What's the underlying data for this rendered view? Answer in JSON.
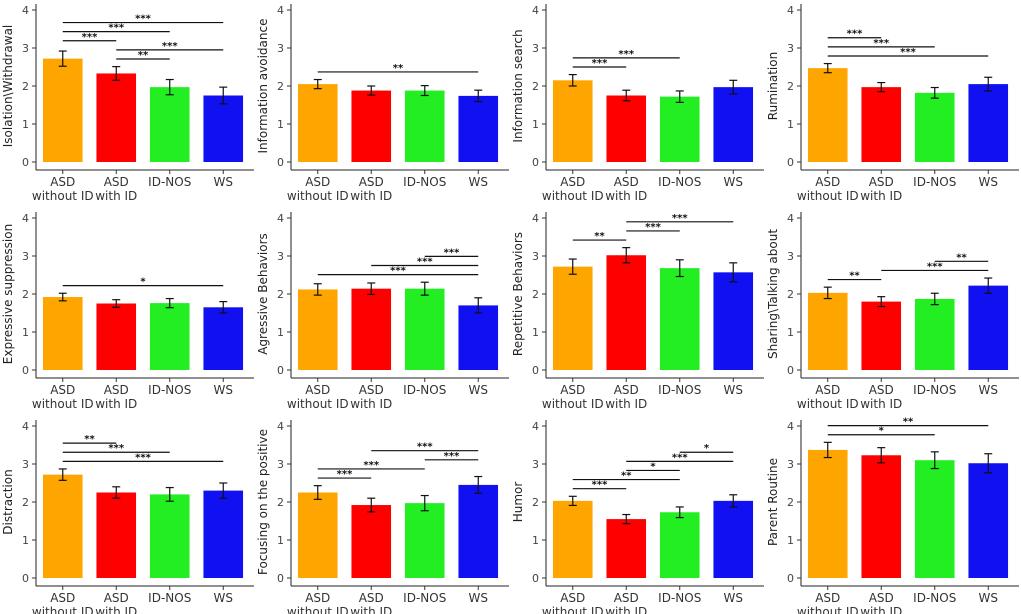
{
  "chart_data": [
    {
      "type": "bar",
      "ylabel": "Isolation\\Withdrawal",
      "categories": [
        "ASD\nwithout ID",
        "ASD\nwith ID",
        "ID-NOS",
        "WS"
      ],
      "values": [
        2.72,
        2.33,
        1.97,
        1.75
      ],
      "errors": [
        0.2,
        0.18,
        0.2,
        0.22
      ],
      "colors": [
        "#ffa500",
        "#ff0000",
        "#22ee22",
        "#1010f0"
      ],
      "ylim": [
        0,
        4
      ],
      "yticks": [
        0,
        1,
        2,
        3,
        4
      ],
      "comparisons": [
        {
          "from": 0,
          "to": 3,
          "label": "***"
        },
        {
          "from": 0,
          "to": 2,
          "label": "***"
        },
        {
          "from": 0,
          "to": 1,
          "label": "***"
        },
        {
          "from": 1,
          "to": 3,
          "label": "***"
        },
        {
          "from": 1,
          "to": 2,
          "label": "**"
        }
      ]
    },
    {
      "type": "bar",
      "ylabel": "Information avoidance",
      "categories": [
        "ASD\nwithout ID",
        "ASD\nwith ID",
        "ID-NOS",
        "WS"
      ],
      "values": [
        2.05,
        1.88,
        1.88,
        1.74
      ],
      "errors": [
        0.12,
        0.12,
        0.13,
        0.15
      ],
      "colors": [
        "#ffa500",
        "#ff0000",
        "#22ee22",
        "#1010f0"
      ],
      "ylim": [
        0,
        4
      ],
      "yticks": [
        0,
        1,
        2,
        3,
        4
      ],
      "comparisons": [
        {
          "from": 0,
          "to": 3,
          "label": "**"
        }
      ]
    },
    {
      "type": "bar",
      "ylabel": "Information search",
      "categories": [
        "ASD\nwithout ID",
        "ASD\nwith ID",
        "ID-NOS",
        "WS"
      ],
      "values": [
        2.15,
        1.75,
        1.72,
        1.97
      ],
      "errors": [
        0.15,
        0.14,
        0.15,
        0.18
      ],
      "colors": [
        "#ffa500",
        "#ff0000",
        "#22ee22",
        "#1010f0"
      ],
      "ylim": [
        0,
        4
      ],
      "yticks": [
        0,
        1,
        2,
        3,
        4
      ],
      "comparisons": [
        {
          "from": 0,
          "to": 2,
          "label": "***"
        },
        {
          "from": 0,
          "to": 1,
          "label": "***"
        }
      ]
    },
    {
      "type": "bar",
      "ylabel": "Rumination",
      "categories": [
        "ASD\nwithout ID",
        "ASD\nwith ID",
        "ID-NOS",
        "WS"
      ],
      "values": [
        2.47,
        1.97,
        1.82,
        2.05
      ],
      "errors": [
        0.12,
        0.12,
        0.14,
        0.18
      ],
      "colors": [
        "#ffa500",
        "#ff0000",
        "#22ee22",
        "#1010f0"
      ],
      "ylim": [
        0,
        4
      ],
      "yticks": [
        0,
        1,
        2,
        3,
        4
      ],
      "comparisons": [
        {
          "from": 0,
          "to": 1,
          "label": "***"
        },
        {
          "from": 0,
          "to": 2,
          "label": "***"
        },
        {
          "from": 0,
          "to": 3,
          "label": "***"
        }
      ]
    },
    {
      "type": "bar",
      "ylabel": "Expressive suppression",
      "categories": [
        "ASD\nwithout ID",
        "ASD\nwith ID",
        "ID-NOS",
        "WS"
      ],
      "values": [
        1.92,
        1.75,
        1.76,
        1.65
      ],
      "errors": [
        0.1,
        0.1,
        0.12,
        0.15
      ],
      "colors": [
        "#ffa500",
        "#ff0000",
        "#22ee22",
        "#1010f0"
      ],
      "ylim": [
        0,
        4
      ],
      "yticks": [
        0,
        1,
        2,
        3,
        4
      ],
      "comparisons": [
        {
          "from": 0,
          "to": 3,
          "label": "*"
        }
      ]
    },
    {
      "type": "bar",
      "ylabel": "Agressive Behaviors",
      "categories": [
        "ASD\nwithout ID",
        "ASD\nwith ID",
        "ID-NOS",
        "WS"
      ],
      "values": [
        2.12,
        2.14,
        2.14,
        1.7
      ],
      "errors": [
        0.15,
        0.15,
        0.17,
        0.2
      ],
      "colors": [
        "#ffa500",
        "#ff0000",
        "#22ee22",
        "#1010f0"
      ],
      "ylim": [
        0,
        4
      ],
      "yticks": [
        0,
        1,
        2,
        3,
        4
      ],
      "comparisons": [
        {
          "from": 2,
          "to": 3,
          "label": "***"
        },
        {
          "from": 1,
          "to": 3,
          "label": "***"
        },
        {
          "from": 0,
          "to": 3,
          "label": "***"
        }
      ]
    },
    {
      "type": "bar",
      "ylabel": "Repetitive Behaviors",
      "categories": [
        "ASD\nwithout ID",
        "ASD\nwith ID",
        "ID-NOS",
        "WS"
      ],
      "values": [
        2.72,
        3.02,
        2.68,
        2.57
      ],
      "errors": [
        0.2,
        0.2,
        0.22,
        0.25
      ],
      "colors": [
        "#ffa500",
        "#ff0000",
        "#22ee22",
        "#1010f0"
      ],
      "ylim": [
        0,
        4
      ],
      "yticks": [
        0,
        1,
        2,
        3,
        4
      ],
      "comparisons": [
        {
          "from": 1,
          "to": 3,
          "label": "***"
        },
        {
          "from": 1,
          "to": 2,
          "label": "***"
        },
        {
          "from": 0,
          "to": 1,
          "label": "**"
        }
      ]
    },
    {
      "type": "bar",
      "ylabel": "Sharing\\Talking about",
      "categories": [
        "ASD\nwithout ID",
        "ASD\nwith ID",
        "ID-NOS",
        "WS"
      ],
      "values": [
        2.03,
        1.8,
        1.87,
        2.22
      ],
      "errors": [
        0.15,
        0.13,
        0.15,
        0.2
      ],
      "colors": [
        "#ffa500",
        "#ff0000",
        "#22ee22",
        "#1010f0"
      ],
      "ylim": [
        0,
        4
      ],
      "yticks": [
        0,
        1,
        2,
        3,
        4
      ],
      "comparisons": [
        {
          "from": 2,
          "to": 3,
          "label": "**"
        },
        {
          "from": 1,
          "to": 3,
          "label": "***"
        },
        {
          "from": 0,
          "to": 1,
          "label": "**"
        }
      ]
    },
    {
      "type": "bar",
      "ylabel": "Distraction",
      "categories": [
        "ASD\nwithout ID",
        "ASD\nwith ID",
        "ID-NOS",
        "WS"
      ],
      "values": [
        2.72,
        2.25,
        2.2,
        2.3
      ],
      "errors": [
        0.15,
        0.15,
        0.18,
        0.2
      ],
      "colors": [
        "#ffa500",
        "#ff0000",
        "#22ee22",
        "#1010f0"
      ],
      "ylim": [
        0,
        4
      ],
      "yticks": [
        0,
        1,
        2,
        3,
        4
      ],
      "comparisons": [
        {
          "from": 0,
          "to": 1,
          "label": "**"
        },
        {
          "from": 0,
          "to": 2,
          "label": "***"
        },
        {
          "from": 0,
          "to": 3,
          "label": "***"
        }
      ]
    },
    {
      "type": "bar",
      "ylabel": "Focusing on the positive",
      "categories": [
        "ASD\nwithout ID",
        "ASD\nwith ID",
        "ID-NOS",
        "WS"
      ],
      "values": [
        2.25,
        1.92,
        1.97,
        2.45
      ],
      "errors": [
        0.18,
        0.18,
        0.2,
        0.22
      ],
      "colors": [
        "#ffa500",
        "#ff0000",
        "#22ee22",
        "#1010f0"
      ],
      "ylim": [
        0,
        4
      ],
      "yticks": [
        0,
        1,
        2,
        3,
        4
      ],
      "comparisons": [
        {
          "from": 1,
          "to": 3,
          "label": "***"
        },
        {
          "from": 2,
          "to": 3,
          "label": "***"
        },
        {
          "from": 0,
          "to": 2,
          "label": "***"
        },
        {
          "from": 0,
          "to": 1,
          "label": "***"
        }
      ]
    },
    {
      "type": "bar",
      "ylabel": "Humor",
      "categories": [
        "ASD\nwithout ID",
        "ASD\nwith ID",
        "ID-NOS",
        "WS"
      ],
      "values": [
        2.03,
        1.55,
        1.73,
        2.03
      ],
      "errors": [
        0.12,
        0.12,
        0.14,
        0.16
      ],
      "colors": [
        "#ffa500",
        "#ff0000",
        "#22ee22",
        "#1010f0"
      ],
      "ylim": [
        0,
        4
      ],
      "yticks": [
        0,
        1,
        2,
        3,
        4
      ],
      "comparisons": [
        {
          "from": 2,
          "to": 3,
          "label": "*"
        },
        {
          "from": 1,
          "to": 3,
          "label": "***"
        },
        {
          "from": 1,
          "to": 2,
          "label": "*"
        },
        {
          "from": 0,
          "to": 2,
          "label": "**"
        },
        {
          "from": 0,
          "to": 1,
          "label": "***"
        }
      ]
    },
    {
      "type": "bar",
      "ylabel": "Parent Routine",
      "categories": [
        "ASD\nwithout ID",
        "ASD\nwith ID",
        "ID-NOS",
        "WS"
      ],
      "values": [
        3.37,
        3.23,
        3.1,
        3.02
      ],
      "errors": [
        0.2,
        0.2,
        0.22,
        0.25
      ],
      "colors": [
        "#ffa500",
        "#ff0000",
        "#22ee22",
        "#1010f0"
      ],
      "ylim": [
        0,
        4
      ],
      "yticks": [
        0,
        1,
        2,
        3,
        4
      ],
      "comparisons": [
        {
          "from": 0,
          "to": 3,
          "label": "**"
        },
        {
          "from": 0,
          "to": 2,
          "label": "*"
        }
      ]
    }
  ]
}
